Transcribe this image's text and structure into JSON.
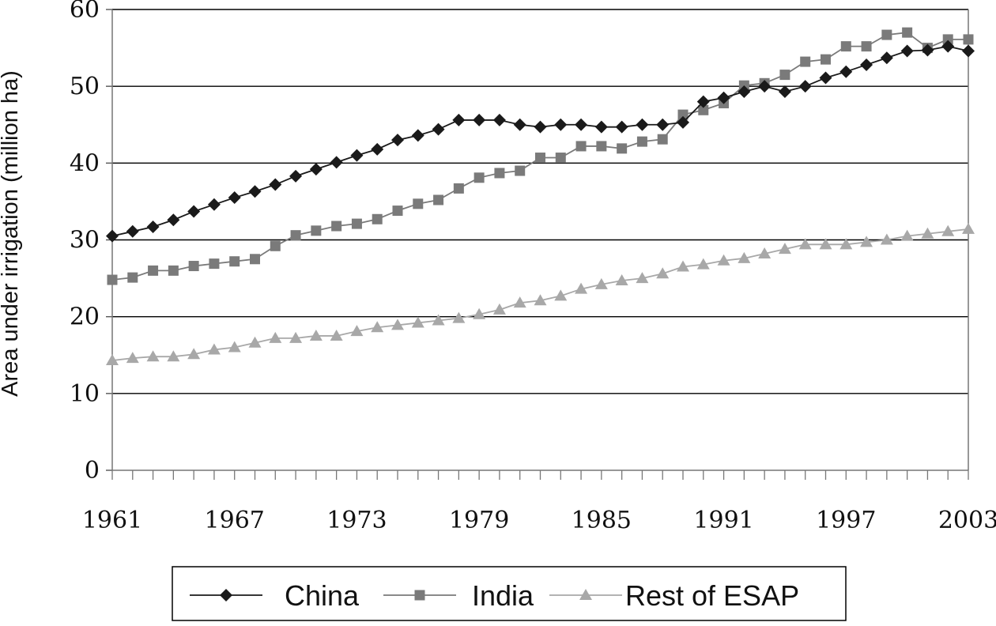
{
  "chart_data": {
    "type": "line",
    "title": "",
    "xlabel": "",
    "ylabel": "Area under irrigation (million ha)",
    "xlim": [
      1961,
      2003
    ],
    "ylim": [
      0,
      60
    ],
    "x_ticks": [
      "1961",
      "1967",
      "1973",
      "1979",
      "1985",
      "1991",
      "1997",
      "2003"
    ],
    "y_ticks": [
      "0",
      "10",
      "20",
      "30",
      "40",
      "50",
      "60"
    ],
    "grid": "horizontal",
    "legend_position": "bottom",
    "x": [
      1961,
      1962,
      1963,
      1964,
      1965,
      1966,
      1967,
      1968,
      1969,
      1970,
      1971,
      1972,
      1973,
      1974,
      1975,
      1976,
      1977,
      1978,
      1979,
      1980,
      1981,
      1982,
      1983,
      1984,
      1985,
      1986,
      1987,
      1988,
      1989,
      1990,
      1991,
      1992,
      1993,
      1994,
      1995,
      1996,
      1997,
      1998,
      1999,
      2000,
      2001,
      2002,
      2003
    ],
    "series": [
      {
        "name": "China",
        "color": "#1a1a1a",
        "marker": "diamond",
        "values": [
          30.5,
          31.1,
          31.7,
          32.6,
          33.7,
          34.6,
          35.5,
          36.3,
          37.2,
          38.3,
          39.2,
          40.1,
          41.0,
          41.8,
          43.0,
          43.6,
          44.4,
          45.6,
          45.6,
          45.6,
          45.0,
          44.7,
          45.0,
          45.0,
          44.7,
          44.7,
          45.0,
          45.0,
          45.3,
          48.0,
          48.5,
          49.3,
          50.0,
          49.3,
          50.0,
          51.1,
          51.9,
          52.8,
          53.7,
          54.6,
          54.7,
          55.2,
          54.6
        ]
      },
      {
        "name": "India",
        "color": "#7a7a7a",
        "marker": "square",
        "values": [
          24.8,
          25.1,
          26.0,
          26.0,
          26.6,
          26.9,
          27.2,
          27.5,
          29.2,
          30.6,
          31.2,
          31.8,
          32.1,
          32.7,
          33.8,
          34.7,
          35.2,
          36.7,
          38.1,
          38.7,
          39.0,
          40.7,
          40.7,
          42.2,
          42.2,
          41.9,
          42.8,
          43.1,
          46.3,
          46.9,
          47.8,
          50.1,
          50.4,
          51.5,
          53.2,
          53.5,
          55.2,
          55.2,
          56.7,
          57.0,
          55.0,
          56.1,
          56.1
        ]
      },
      {
        "name": "Rest of ESAP",
        "color": "#a8a8a8",
        "marker": "triangle",
        "values": [
          14.3,
          14.6,
          14.8,
          14.8,
          15.1,
          15.7,
          16.0,
          16.6,
          17.2,
          17.2,
          17.5,
          17.5,
          18.1,
          18.6,
          18.9,
          19.2,
          19.5,
          19.8,
          20.3,
          20.9,
          21.8,
          22.1,
          22.7,
          23.6,
          24.2,
          24.7,
          25.0,
          25.6,
          26.5,
          26.8,
          27.3,
          27.6,
          28.2,
          28.8,
          29.4,
          29.4,
          29.4,
          29.7,
          30.0,
          30.5,
          30.8,
          31.1,
          31.4
        ]
      }
    ]
  }
}
